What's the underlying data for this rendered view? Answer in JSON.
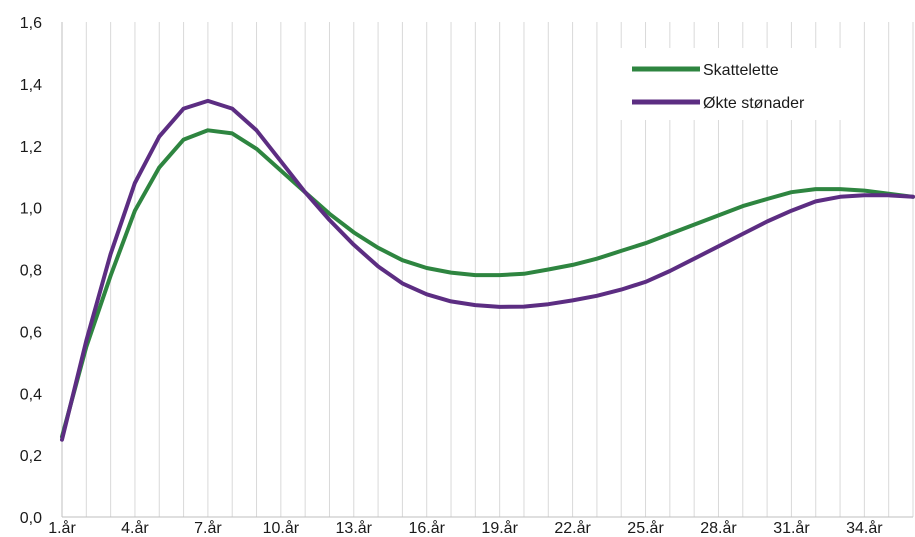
{
  "chart_data": {
    "type": "line",
    "title": "",
    "xlabel": "",
    "ylabel": "",
    "x": [
      "1.år",
      "2.år",
      "3.år",
      "4.år",
      "5.år",
      "6.år",
      "7.år",
      "8.år",
      "9.år",
      "10.år",
      "11.år",
      "12.år",
      "13.år",
      "14.år",
      "15.år",
      "16.år",
      "17.år",
      "18.år",
      "19.år",
      "20.år",
      "21.år",
      "22.år",
      "23.år",
      "24.år",
      "25.år",
      "26.år",
      "27.år",
      "28.år",
      "29.år",
      "30.år",
      "31.år",
      "32.år",
      "33.år",
      "34.år",
      "35.år",
      "36.år"
    ],
    "xtick_labels": [
      "1.år",
      "4.år",
      "7.år",
      "10.år",
      "13.år",
      "16.år",
      "19.år",
      "22.år",
      "25.år",
      "28.år",
      "31.år",
      "34.år"
    ],
    "ylim": [
      0,
      1.6
    ],
    "yticks": [
      "0,0",
      "0,2",
      "0,4",
      "0,6",
      "0,8",
      "1,0",
      "1,2",
      "1,4",
      "1,6"
    ],
    "grid": "vertical",
    "legend_position": "top-right",
    "series": [
      {
        "name": "Skattelette",
        "color": "#2e8540",
        "values": [
          0.26,
          0.55,
          0.78,
          0.99,
          1.13,
          1.22,
          1.25,
          1.24,
          1.19,
          1.12,
          1.05,
          0.98,
          0.92,
          0.87,
          0.83,
          0.805,
          0.79,
          0.782,
          0.782,
          0.786,
          0.8,
          0.815,
          0.835,
          0.86,
          0.885,
          0.915,
          0.945,
          0.975,
          1.005,
          1.028,
          1.05,
          1.06,
          1.06,
          1.055,
          1.045,
          1.035
        ]
      },
      {
        "name": "Økte stønader",
        "color": "#5c2d82",
        "values": [
          0.25,
          0.57,
          0.85,
          1.08,
          1.23,
          1.32,
          1.345,
          1.32,
          1.25,
          1.15,
          1.05,
          0.96,
          0.88,
          0.81,
          0.755,
          0.72,
          0.697,
          0.685,
          0.679,
          0.68,
          0.688,
          0.7,
          0.715,
          0.735,
          0.76,
          0.795,
          0.835,
          0.875,
          0.915,
          0.955,
          0.99,
          1.02,
          1.035,
          1.04,
          1.04,
          1.035
        ]
      }
    ]
  }
}
